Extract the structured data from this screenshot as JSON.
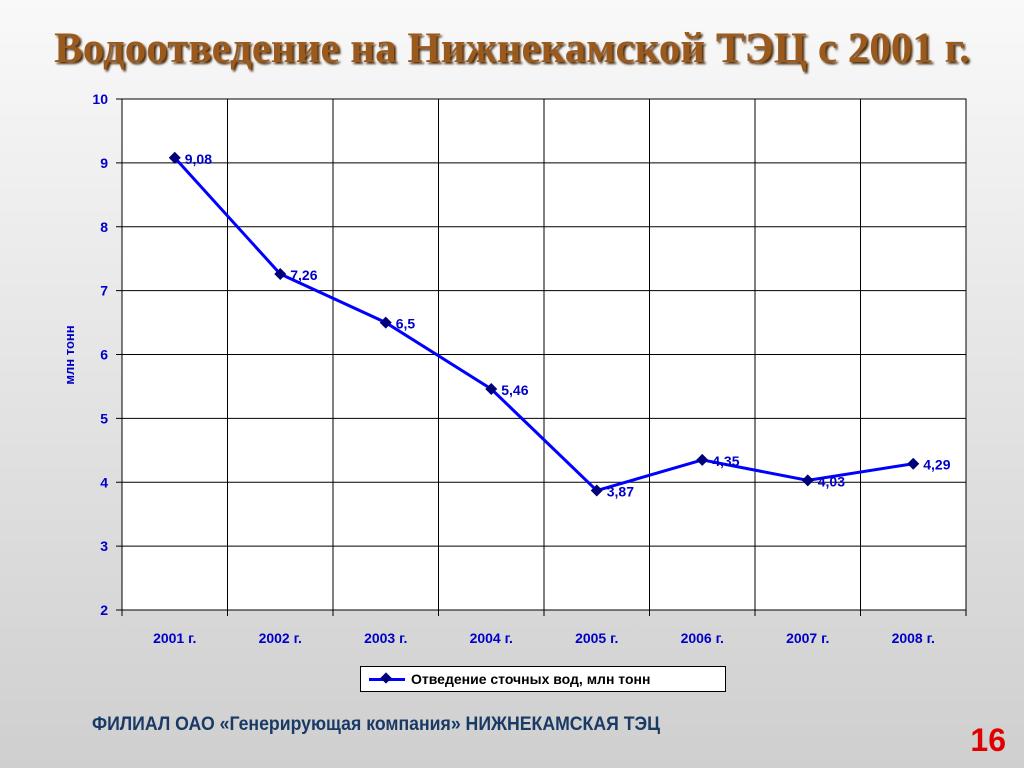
{
  "slide": {
    "title": "Водоотведение на Нижнекамской ТЭЦ с 2001 г.",
    "footer": "ФИЛИАЛ ОАО «Генерирующая компания» НИЖНЕКАМСКАЯ ТЭЦ",
    "page_number": "16"
  },
  "chart_data": {
    "type": "line",
    "categories": [
      "2001 г.",
      "2002 г.",
      "2003 г.",
      "2004 г.",
      "2005 г.",
      "2006 г.",
      "2007 г.",
      "2008 г."
    ],
    "series": [
      {
        "name": "Отведение сточных вод, млн тонн",
        "values": [
          9.08,
          7.26,
          6.5,
          5.46,
          3.87,
          4.35,
          4.03,
          4.29
        ],
        "labels": [
          "9,08",
          "7,26",
          "6,5",
          "5,46",
          "3,87",
          "4,35",
          "4,03",
          "4,29"
        ],
        "color": "#0000ff",
        "marker": "diamond",
        "marker_color": "#00007a"
      }
    ],
    "ylabel": "млн тонн",
    "xlabel": "",
    "ylim": [
      2,
      10
    ],
    "yticks": [
      2,
      3,
      4,
      5,
      6,
      7,
      8,
      9,
      10
    ],
    "grid": true,
    "legend_position": "bottom-center"
  },
  "colors": {
    "title": "#9a5a1e",
    "tick_text": "#0000c8",
    "footer": "#1a3a66",
    "page_number": "#e00000"
  }
}
